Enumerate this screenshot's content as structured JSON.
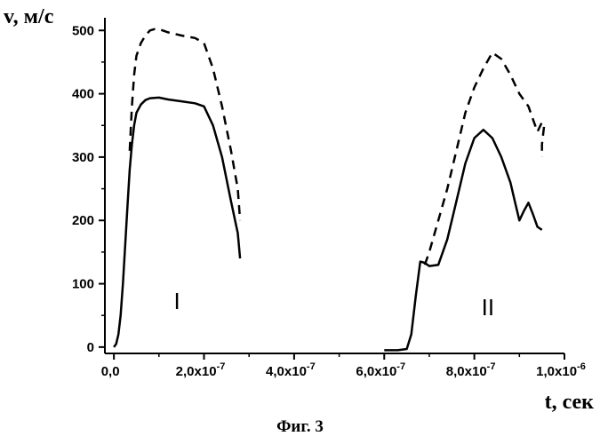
{
  "caption": "Фиг. 3",
  "chart_data": {
    "type": "line",
    "xlabel": "t, сек",
    "ylabel": "v, м/с",
    "xlim": [
      -2e-08,
      1e-06
    ],
    "ylim": [
      -10,
      520
    ],
    "x_ticks": [
      {
        "v": 0,
        "label": "0,0",
        "exp": ""
      },
      {
        "v": 2e-07,
        "label": "2,0x10",
        "exp": "-7"
      },
      {
        "v": 4e-07,
        "label": "4,0x10",
        "exp": "-7"
      },
      {
        "v": 6e-07,
        "label": "6,0x10",
        "exp": "-7"
      },
      {
        "v": 8e-07,
        "label": "8,0x10",
        "exp": "-7"
      },
      {
        "v": 1e-06,
        "label": "1,0x10",
        "exp": "-6"
      }
    ],
    "y_ticks": [
      {
        "v": 0,
        "label": "0"
      },
      {
        "v": 100,
        "label": "100"
      },
      {
        "v": 200,
        "label": "200"
      },
      {
        "v": 300,
        "label": "300"
      },
      {
        "v": 400,
        "label": "400"
      },
      {
        "v": 500,
        "label": "500"
      }
    ],
    "grid": false,
    "series": [
      {
        "style": "solid",
        "points": [
          [
            0,
            0
          ],
          [
            5e-09,
            5
          ],
          [
            1e-08,
            20
          ],
          [
            1.5e-08,
            50
          ],
          [
            2e-08,
            100
          ],
          [
            2.5e-08,
            160
          ],
          [
            3e-08,
            220
          ],
          [
            3.5e-08,
            280
          ],
          [
            4e-08,
            320
          ],
          [
            4.5e-08,
            350
          ],
          [
            5e-08,
            370
          ],
          [
            6e-08,
            383
          ],
          [
            7e-08,
            390
          ],
          [
            8e-08,
            393
          ],
          [
            1e-07,
            394
          ],
          [
            1.2e-07,
            391
          ],
          [
            1.5e-07,
            388
          ],
          [
            1.8e-07,
            385
          ],
          [
            2e-07,
            380
          ],
          [
            2.2e-07,
            350
          ],
          [
            2.4e-07,
            300
          ],
          [
            2.6e-07,
            230
          ],
          [
            2.75e-07,
            180
          ],
          [
            2.8e-07,
            140
          ]
        ]
      },
      {
        "style": "dashed",
        "points": [
          [
            3.5e-08,
            310
          ],
          [
            4e-08,
            380
          ],
          [
            4.5e-08,
            430
          ],
          [
            5e-08,
            460
          ],
          [
            6e-08,
            480
          ],
          [
            7e-08,
            492
          ],
          [
            8e-08,
            500
          ],
          [
            9e-08,
            502
          ],
          [
            1e-07,
            502
          ],
          [
            1.2e-07,
            497
          ],
          [
            1.5e-07,
            492
          ],
          [
            1.8e-07,
            488
          ],
          [
            2e-07,
            480
          ],
          [
            2.2e-07,
            440
          ],
          [
            2.4e-07,
            380
          ],
          [
            2.6e-07,
            310
          ],
          [
            2.75e-07,
            250
          ],
          [
            2.8e-07,
            200
          ]
        ]
      },
      {
        "style": "solid",
        "points": [
          [
            6e-07,
            -5
          ],
          [
            6.3e-07,
            -5
          ],
          [
            6.5e-07,
            -3
          ],
          [
            6.6e-07,
            20
          ],
          [
            6.7e-07,
            80
          ],
          [
            6.8e-07,
            135
          ],
          [
            6.9e-07,
            133
          ],
          [
            7e-07,
            128
          ],
          [
            7.2e-07,
            130
          ],
          [
            7.4e-07,
            170
          ],
          [
            7.6e-07,
            230
          ],
          [
            7.8e-07,
            290
          ],
          [
            8e-07,
            330
          ],
          [
            8.2e-07,
            343
          ],
          [
            8.4e-07,
            330
          ],
          [
            8.6e-07,
            300
          ],
          [
            8.8e-07,
            260
          ],
          [
            8.9e-07,
            230
          ],
          [
            9e-07,
            200
          ],
          [
            9.1e-07,
            215
          ],
          [
            9.2e-07,
            228
          ],
          [
            9.3e-07,
            210
          ],
          [
            9.4e-07,
            190
          ],
          [
            9.5e-07,
            185
          ]
        ]
      },
      {
        "style": "dashed",
        "points": [
          [
            6.9e-07,
            130
          ],
          [
            7e-07,
            150
          ],
          [
            7.2e-07,
            200
          ],
          [
            7.4e-07,
            250
          ],
          [
            7.6e-07,
            310
          ],
          [
            7.8e-07,
            370
          ],
          [
            8e-07,
            410
          ],
          [
            8.2e-07,
            440
          ],
          [
            8.4e-07,
            465
          ],
          [
            8.6e-07,
            455
          ],
          [
            8.8e-07,
            430
          ],
          [
            9e-07,
            400
          ],
          [
            9.2e-07,
            380
          ],
          [
            9.3e-07,
            360
          ],
          [
            9.4e-07,
            340
          ],
          [
            9.5e-07,
            355
          ],
          [
            9.55e-07,
            350
          ],
          [
            9.5e-07,
            320
          ],
          [
            9.5e-07,
            300
          ]
        ]
      }
    ],
    "annotations": [
      {
        "text": "I",
        "x": 1.4e-07,
        "y": 60
      },
      {
        "text": "II",
        "x": 8.3e-07,
        "y": 50
      }
    ]
  }
}
